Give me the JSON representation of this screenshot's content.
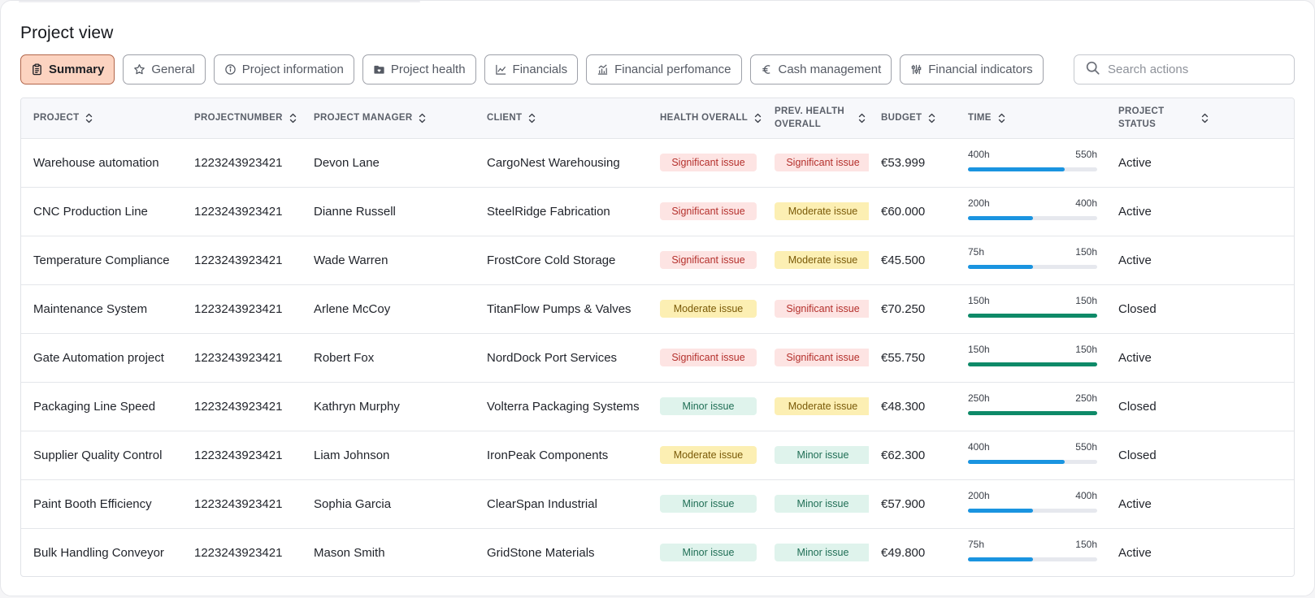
{
  "page_title": "Project view",
  "tabs": [
    {
      "label": "Summary",
      "icon": "clipboard-icon",
      "active": true
    },
    {
      "label": "General",
      "icon": "star-icon"
    },
    {
      "label": "Project information",
      "icon": "info-circle-icon"
    },
    {
      "label": "Project health",
      "icon": "folder-heart-icon"
    },
    {
      "label": "Financials",
      "icon": "line-chart-icon"
    },
    {
      "label": "Financial perfomance",
      "icon": "bar-chart-icon"
    },
    {
      "label": "Cash management",
      "icon": "euro-icon"
    },
    {
      "label": "Financial indicators",
      "icon": "sliders-icon"
    }
  ],
  "search": {
    "placeholder": "Search actions",
    "value": ""
  },
  "columns": [
    "PROJECT",
    "PROJECTNUMBER",
    "PROJECT MANAGER",
    "CLIENT",
    "HEALTH OVERALL",
    "PREV. HEALTH OVERALL",
    "BUDGET",
    "TIME",
    "PROJECT STATUS"
  ],
  "colors": {
    "significant": "#b4302c",
    "moderate": "#7a5a08",
    "minor": "#1f6e55",
    "progress": "#1a94e0",
    "complete": "#0e8a68",
    "active_tab": "#fcd3c0"
  },
  "rows": [
    {
      "project": "Warehouse automation",
      "number": "1223243923421",
      "manager": "Devon Lane",
      "client": "CargoNest Warehousing",
      "health": "Significant issue",
      "health_level": "sig",
      "prev_health": "Significant issue",
      "prev_level": "sig",
      "budget": "€53.999",
      "time_spent": "400h",
      "time_total": "550h",
      "progress": 0.75,
      "status": "Active"
    },
    {
      "project": "CNC Production Line",
      "number": "1223243923421",
      "manager": "Dianne Russell",
      "client": "SteelRidge Fabrication",
      "health": "Significant issue",
      "health_level": "sig",
      "prev_health": "Moderate issue",
      "prev_level": "mod",
      "budget": "€60.000",
      "time_spent": "200h",
      "time_total": "400h",
      "progress": 0.5,
      "status": "Active"
    },
    {
      "project": "Temperature Compliance",
      "number": "1223243923421",
      "manager": "Wade Warren",
      "client": "FrostCore Cold Storage",
      "health": "Significant issue",
      "health_level": "sig",
      "prev_health": "Moderate issue",
      "prev_level": "mod",
      "budget": "€45.500",
      "time_spent": "75h",
      "time_total": "150h",
      "progress": 0.5,
      "status": "Active"
    },
    {
      "project": "Maintenance System",
      "number": "1223243923421",
      "manager": "Arlene McCoy",
      "client": "TitanFlow Pumps  & Valves",
      "health": "Moderate issue",
      "health_level": "mod",
      "prev_health": "Significant issue",
      "prev_level": "sig",
      "budget": "€70.250",
      "time_spent": "150h",
      "time_total": "150h",
      "progress": 1.0,
      "status": "Closed"
    },
    {
      "project": "Gate Automation project",
      "number": "1223243923421",
      "manager": "Robert Fox",
      "client": "NordDock Port Services",
      "health": "Significant issue",
      "health_level": "sig",
      "prev_health": "Significant issue",
      "prev_level": "sig",
      "budget": "€55.750",
      "time_spent": "150h",
      "time_total": "150h",
      "progress": 1.0,
      "status": "Active"
    },
    {
      "project": "Packaging Line Speed",
      "number": "1223243923421",
      "manager": "Kathryn Murphy",
      "client": "Volterra Packaging Systems",
      "health": "Minor issue",
      "health_level": "min",
      "prev_health": "Moderate issue",
      "prev_level": "mod",
      "budget": "€48.300",
      "time_spent": "250h",
      "time_total": "250h",
      "progress": 1.0,
      "status": "Closed"
    },
    {
      "project": "Supplier Quality Control",
      "number": "1223243923421",
      "manager": "Liam Johnson",
      "client": "IronPeak Components",
      "health": "Moderate issue",
      "health_level": "mod",
      "prev_health": "Minor issue",
      "prev_level": "min",
      "budget": "€62.300",
      "time_spent": "400h",
      "time_total": "550h",
      "progress": 0.75,
      "status": "Closed"
    },
    {
      "project": "Paint Booth Efficiency",
      "number": "1223243923421",
      "manager": "Sophia Garcia",
      "client": "ClearSpan Industrial",
      "health": "Minor issue",
      "health_level": "min",
      "prev_health": "Minor issue",
      "prev_level": "min",
      "budget": "€57.900",
      "time_spent": "200h",
      "time_total": "400h",
      "progress": 0.5,
      "status": "Active"
    },
    {
      "project": "Bulk Handling Conveyor",
      "number": "1223243923421",
      "manager": "Mason Smith",
      "client": "GridStone Materials",
      "health": "Minor issue",
      "health_level": "min",
      "prev_health": "Minor issue",
      "prev_level": "min",
      "budget": "€49.800",
      "time_spent": "75h",
      "time_total": "150h",
      "progress": 0.5,
      "status": "Active"
    }
  ]
}
